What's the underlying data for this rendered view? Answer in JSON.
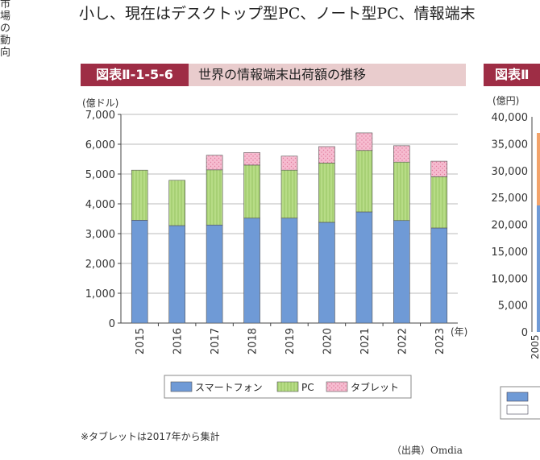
{
  "side_text": "市場の動向",
  "body_text": "小し、現在はデスクトップ型PC、ノート型PC、情報端末",
  "figure": {
    "tag": "図表Ⅱ-1-5-6",
    "title": "世界の情報端末出荷額の推移",
    "note": "※タブレットは2017年から集計",
    "source": "（出典）Omdia"
  },
  "figure2": {
    "tag": "図表Ⅱ",
    "yunit": "(億円)",
    "yticks": [
      "40,000",
      "35,000",
      "30,000",
      "25,000",
      "20,000",
      "15,000",
      "10,000",
      "5,000",
      "0"
    ],
    "xfirst": "2005"
  },
  "chart_data": {
    "type": "bar",
    "stacked": true,
    "categories": [
      "2015",
      "2016",
      "2017",
      "2018",
      "2019",
      "2020",
      "2021",
      "2022",
      "2023"
    ],
    "x_unit": "(年)",
    "y_unit": "(億ドル)",
    "ylim": [
      0,
      7000
    ],
    "yticks": [
      "0",
      "1,000",
      "2,000",
      "3,000",
      "4,000",
      "5,000",
      "6,000",
      "7,000"
    ],
    "grid": true,
    "legend_position": "bottom",
    "series": [
      {
        "name": "スマートフォン",
        "color": "#6f9ad6",
        "values": [
          3450,
          3270,
          3290,
          3520,
          3520,
          3380,
          3730,
          3440,
          3190
        ]
      },
      {
        "name": "PC",
        "color": "#b7dc86",
        "values": [
          1680,
          1520,
          1850,
          1780,
          1610,
          1990,
          2060,
          1960,
          1720
        ]
      },
      {
        "name": "タブレット",
        "color": "#f6bcd0",
        "values": [
          0,
          0,
          490,
          420,
          470,
          550,
          590,
          550,
          520
        ]
      }
    ]
  }
}
